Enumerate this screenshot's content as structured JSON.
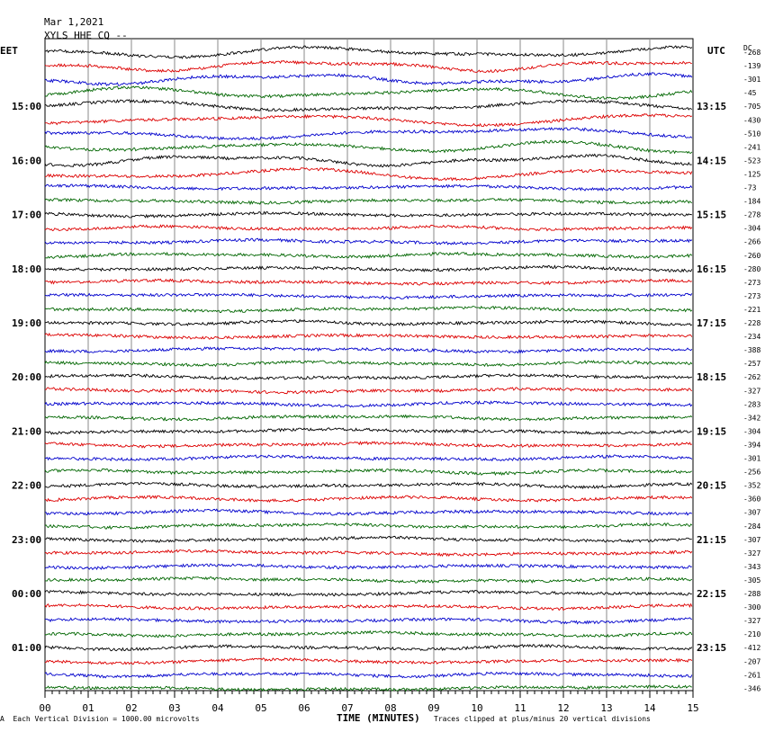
{
  "header": {
    "date": "Mar 1,2021",
    "station": "XYLS HHE CQ --"
  },
  "labels": {
    "left_zone": "EET",
    "right_zone": "UTC",
    "dc_header": "DC"
  },
  "footer": {
    "scale_mark": "A",
    "scale": "Each Vertical Division = 1000.00 microvolts",
    "xlabel": "TIME (MINUTES)",
    "clip_note": "Traces clipped at plus/minus 20 vertical divisions"
  },
  "chart_data": {
    "type": "line",
    "title": "Mar 1,2021 XYLS HHE CQ --",
    "xlabel": "TIME (MINUTES)",
    "xlim": [
      0,
      15
    ],
    "x_ticks": [
      "00",
      "01",
      "02",
      "03",
      "04",
      "05",
      "06",
      "07",
      "08",
      "09",
      "10",
      "11",
      "12",
      "13",
      "14",
      "15"
    ],
    "trace_colors": [
      "#000000",
      "#dd0000",
      "#0000cc",
      "#006600"
    ],
    "rows": 48,
    "left_hour_labels": [
      "15:00",
      "16:00",
      "17:00",
      "18:00",
      "19:00",
      "20:00",
      "21:00",
      "22:00",
      "23:00",
      "00:00",
      "01:00"
    ],
    "left_label_rows": [
      4,
      8,
      12,
      16,
      20,
      24,
      28,
      32,
      36,
      40,
      44
    ],
    "right_hour_labels": [
      "13:15",
      "14:15",
      "15:15",
      "16:15",
      "17:15",
      "18:15",
      "19:15",
      "20:15",
      "21:15",
      "22:15",
      "23:15"
    ],
    "right_label_rows": [
      4,
      8,
      12,
      16,
      20,
      24,
      28,
      32,
      36,
      40,
      44
    ],
    "dc_offsets": [
      -268,
      -139,
      -301,
      -45,
      -705,
      -430,
      -510,
      -241,
      -523,
      -125,
      -73,
      -184,
      -278,
      -304,
      -266,
      -260,
      -280,
      -273,
      -273,
      -221,
      -228,
      -234,
      -388,
      -257,
      -262,
      -327,
      -283,
      -342,
      -304,
      -394,
      -301,
      -256,
      -352,
      -360,
      -307,
      -284,
      -307,
      -327,
      -343,
      -305,
      -288,
      -300,
      -327,
      -210,
      -412,
      -207,
      -261,
      -346
    ],
    "grid": true
  }
}
